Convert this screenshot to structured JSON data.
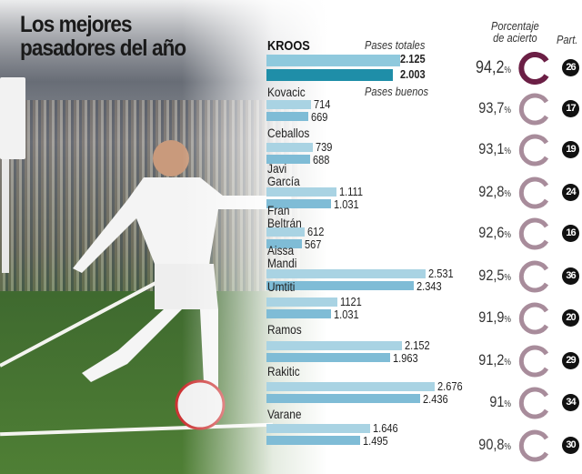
{
  "title_line1": "Los mejores",
  "title_line2": "pasadores del año",
  "headers": {
    "total": "Pases totales",
    "good": "Pases buenos",
    "accuracy_line1": "Porcentaje",
    "accuracy_line2": "de acierto",
    "matches": "Part.",
    "percent_sign": "%"
  },
  "colors": {
    "total_bar": "#a9d3e3",
    "good_bar": "#7fbcd6",
    "kroos_total_bar": "#8fc9dd",
    "kroos_good_bar": "#1f8ea8",
    "ring_highlight": "#6b1f45",
    "ring": "#a88c9b"
  },
  "chart_data": {
    "type": "bar",
    "categories": [
      "KROOS",
      "Kovacic",
      "Ceballos",
      "Javi\nGarcía",
      "Fran\nBeltrán",
      "Aissa\nMandi",
      "Umtiti",
      "Ramos",
      "Rakitic",
      "Varane"
    ],
    "series": [
      {
        "name": "Pases totales",
        "values": [
          2125,
          714,
          739,
          1111,
          612,
          2531,
          1121,
          2152,
          2676,
          1646
        ],
        "labels": [
          "2.125",
          "714",
          "739",
          "1.111",
          "612",
          "2.531",
          "1121",
          "2.152",
          "2.676",
          "1.646"
        ]
      },
      {
        "name": "Pases buenos",
        "values": [
          2003,
          669,
          688,
          1031,
          567,
          2343,
          1031,
          1963,
          2436,
          1495
        ],
        "labels": [
          "2.003",
          "669",
          "688",
          "1.031",
          "567",
          "2.343",
          "1.031",
          "1.963",
          "2.436",
          "1.495"
        ]
      }
    ],
    "accuracy": [
      "94,2",
      "93,7",
      "93,1",
      "92,8",
      "92,6",
      "92,5",
      "91,9",
      "91,2",
      "91",
      "90,8"
    ],
    "matches": [
      "26",
      "17",
      "19",
      "24",
      "16",
      "36",
      "20",
      "29",
      "34",
      "30"
    ]
  }
}
